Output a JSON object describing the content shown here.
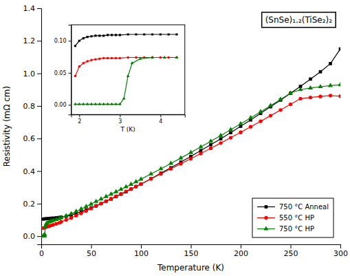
{
  "chart_data": [
    {
      "type": "line",
      "x_label": "Temperature (K)",
      "y_label": "Resistivity (mΩ cm)",
      "xlim": [
        0,
        300
      ],
      "ylim": [
        -0.05,
        1.4
      ],
      "xticks": [
        0,
        50,
        100,
        150,
        200,
        250,
        300
      ],
      "yticks": [
        {
          "value": 0.0,
          "label": "0.0"
        },
        0.2,
        0.4,
        0.6,
        0.8,
        {
          "value": 1.0,
          "label": "1.0"
        },
        1.2,
        1.4
      ],
      "legend": "lower right",
      "annotations": [
        {
          "text": "(SnSe)₁.₂(TiSe₂)₂"
        }
      ],
      "series": [
        {
          "name": "750 °C Anneal",
          "color": "black",
          "marker": "square",
          "x": [
            2,
            4,
            6,
            8,
            10,
            12,
            15,
            18,
            20,
            25,
            30,
            35,
            40,
            45,
            50,
            55,
            60,
            65,
            70,
            75,
            80,
            85,
            90,
            95,
            100,
            110,
            120,
            130,
            140,
            150,
            160,
            170,
            180,
            190,
            200,
            210,
            220,
            230,
            240,
            250,
            260,
            270,
            280,
            290,
            300
          ],
          "values": [
            0.105,
            0.107,
            0.108,
            0.109,
            0.11,
            0.111,
            0.113,
            0.115,
            0.117,
            0.122,
            0.13,
            0.14,
            0.15,
            0.162,
            0.174,
            0.187,
            0.2,
            0.215,
            0.228,
            0.243,
            0.258,
            0.273,
            0.289,
            0.305,
            0.32,
            0.353,
            0.387,
            0.42,
            0.455,
            0.49,
            0.526,
            0.562,
            0.598,
            0.636,
            0.675,
            0.714,
            0.754,
            0.795,
            0.836,
            0.878,
            0.92,
            0.965,
            1.01,
            1.06,
            1.15
          ]
        },
        {
          "name": "550 °C HP",
          "color": "red",
          "marker": "circle",
          "x": [
            2,
            4,
            6,
            8,
            10,
            12,
            15,
            18,
            20,
            25,
            30,
            35,
            40,
            45,
            50,
            55,
            60,
            65,
            70,
            75,
            80,
            85,
            90,
            95,
            100,
            110,
            120,
            130,
            140,
            150,
            160,
            170,
            180,
            190,
            200,
            210,
            220,
            230,
            240,
            250,
            260,
            270,
            280,
            290,
            300
          ],
          "values": [
            0.05,
            0.054,
            0.058,
            0.062,
            0.066,
            0.07,
            0.076,
            0.082,
            0.088,
            0.1,
            0.112,
            0.126,
            0.14,
            0.155,
            0.17,
            0.185,
            0.2,
            0.215,
            0.23,
            0.245,
            0.26,
            0.275,
            0.29,
            0.305,
            0.32,
            0.352,
            0.383,
            0.414,
            0.445,
            0.476,
            0.508,
            0.54,
            0.572,
            0.605,
            0.638,
            0.672,
            0.706,
            0.74,
            0.775,
            0.81,
            0.845,
            0.852,
            0.858,
            0.864,
            0.86
          ]
        },
        {
          "name": "750 °C HP",
          "color": "green",
          "marker": "triangle",
          "x": [
            2,
            2.5,
            3.0,
            3.2,
            3.5,
            4.0,
            5,
            6,
            8,
            10,
            12,
            15,
            18,
            20,
            25,
            30,
            35,
            40,
            45,
            50,
            55,
            60,
            65,
            70,
            75,
            80,
            85,
            90,
            95,
            100,
            110,
            120,
            130,
            140,
            150,
            160,
            170,
            180,
            190,
            200,
            210,
            220,
            230,
            240,
            250,
            260,
            270,
            280,
            290,
            300
          ],
          "values": [
            0.002,
            0.002,
            0.002,
            0.002,
            0.01,
            0.06,
            0.075,
            0.082,
            0.088,
            0.092,
            0.096,
            0.102,
            0.108,
            0.113,
            0.125,
            0.138,
            0.152,
            0.167,
            0.182,
            0.197,
            0.213,
            0.228,
            0.243,
            0.258,
            0.273,
            0.288,
            0.303,
            0.318,
            0.334,
            0.35,
            0.382,
            0.414,
            0.447,
            0.48,
            0.514,
            0.548,
            0.583,
            0.618,
            0.654,
            0.69,
            0.727,
            0.764,
            0.802,
            0.84,
            0.879,
            0.9,
            0.91,
            0.918,
            0.925,
            0.93
          ]
        }
      ]
    },
    {
      "type": "line",
      "x_label": "T (K)",
      "xlim": [
        1.8,
        4.6
      ],
      "ylim": [
        -0.015,
        0.125
      ],
      "xticks": [
        2,
        3,
        4
      ],
      "yticks": [
        {
          "value": 0.0,
          "label": "0.00"
        },
        0.05,
        {
          "value": 0.1,
          "label": "0.10"
        }
      ],
      "series": [
        {
          "color": "black",
          "marker": "square",
          "x": [
            1.9,
            2.0,
            2.1,
            2.2,
            2.3,
            2.4,
            2.5,
            2.6,
            2.7,
            2.8,
            2.9,
            3.0,
            3.2,
            3.4,
            3.6,
            3.8,
            4.0,
            4.2,
            4.4
          ],
          "values": [
            0.092,
            0.1,
            0.104,
            0.106,
            0.107,
            0.108,
            0.108,
            0.108,
            0.109,
            0.109,
            0.109,
            0.109,
            0.11,
            0.11,
            0.11,
            0.11,
            0.11,
            0.11,
            0.11
          ]
        },
        {
          "color": "red",
          "marker": "circle",
          "x": [
            1.9,
            2.0,
            2.1,
            2.2,
            2.3,
            2.4,
            2.5,
            2.6,
            2.7,
            2.8,
            2.9,
            3.0,
            3.2,
            3.4,
            3.6,
            3.8,
            4.0,
            4.2,
            4.4
          ],
          "values": [
            0.045,
            0.06,
            0.065,
            0.068,
            0.07,
            0.071,
            0.072,
            0.073,
            0.073,
            0.073,
            0.073,
            0.073,
            0.074,
            0.074,
            0.074,
            0.074,
            0.074,
            0.074,
            0.074
          ]
        },
        {
          "color": "green",
          "marker": "triangle",
          "x": [
            1.9,
            2.0,
            2.1,
            2.2,
            2.3,
            2.4,
            2.5,
            2.6,
            2.7,
            2.8,
            2.9,
            3.0,
            3.1,
            3.2,
            3.3,
            3.5,
            3.8,
            4.1,
            4.4
          ],
          "values": [
            0.001,
            0.001,
            0.001,
            0.001,
            0.001,
            0.001,
            0.001,
            0.001,
            0.001,
            0.001,
            0.001,
            0.001,
            0.01,
            0.045,
            0.065,
            0.072,
            0.074,
            0.074,
            0.074
          ]
        }
      ]
    }
  ]
}
